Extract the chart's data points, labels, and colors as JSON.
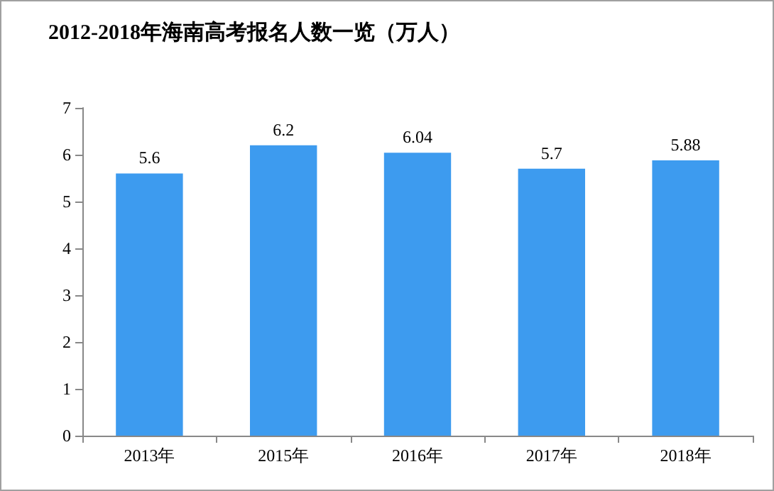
{
  "chart_data": {
    "type": "bar",
    "title": "2012-2018年海南高考报名人数一览（万人）",
    "categories": [
      "2013年",
      "2015年",
      "2016年",
      "2017年",
      "2018年"
    ],
    "values": [
      5.6,
      6.2,
      6.04,
      5.7,
      5.88
    ],
    "color": "#3d9bef",
    "ylim": [
      0,
      7
    ],
    "yticks": [
      0,
      1,
      2,
      3,
      4,
      5,
      6,
      7
    ],
    "grid": false,
    "data_labels": true
  }
}
